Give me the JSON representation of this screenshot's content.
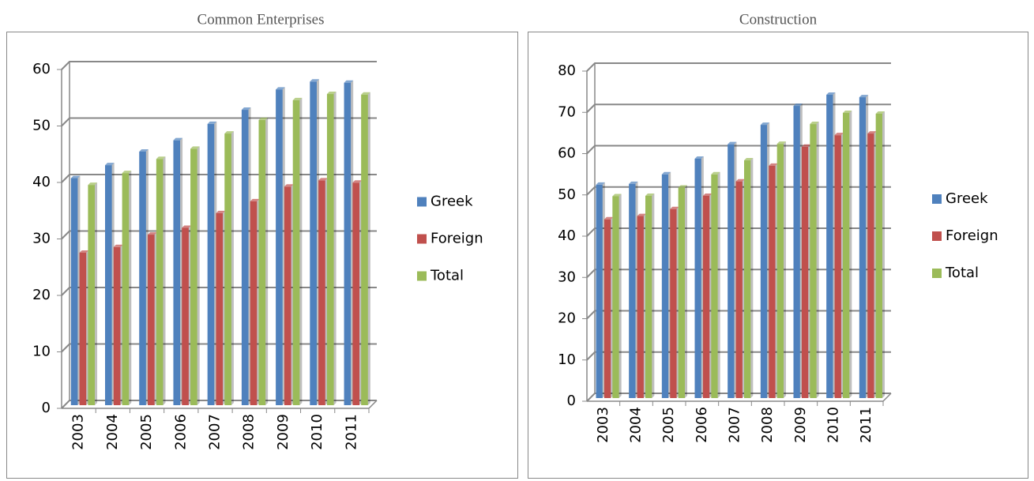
{
  "chart_data": [
    {
      "type": "bar",
      "title": "Common Enterprises",
      "categories": [
        "2003",
        "2004",
        "2005",
        "2006",
        "2007",
        "2008",
        "2009",
        "2010",
        "2011"
      ],
      "series": [
        {
          "name": "Greek",
          "color": "#4f81bd",
          "values": [
            40.2,
            42.5,
            44.9,
            46.9,
            49.8,
            52.3,
            55.9,
            57.3,
            57.1
          ]
        },
        {
          "name": "Foreign",
          "color": "#c0504d",
          "values": [
            27,
            28,
            30.2,
            31.4,
            34,
            36.1,
            38.7,
            39.8,
            39.4
          ]
        },
        {
          "name": "Total",
          "color": "#9bbb59",
          "values": [
            39,
            41.1,
            43.6,
            45.4,
            48.1,
            50.5,
            54,
            55.1,
            55
          ]
        }
      ],
      "ylim": [
        0,
        60
      ],
      "yticks": [
        0,
        10,
        20,
        30,
        40,
        50,
        60
      ],
      "grid": true,
      "legend": "right"
    },
    {
      "type": "bar",
      "title": "Construction",
      "categories": [
        "2003",
        "2004",
        "2005",
        "2006",
        "2007",
        "2008",
        "2009",
        "2010",
        "2011"
      ],
      "series": [
        {
          "name": "Greek",
          "color": "#4f81bd",
          "values": [
            51.7,
            51.9,
            54.2,
            58,
            61.5,
            66.2,
            70.8,
            73.5,
            72.9
          ]
        },
        {
          "name": "Foreign",
          "color": "#c0504d",
          "values": [
            43.3,
            44.1,
            45.8,
            49,
            52.5,
            56.3,
            60.9,
            63.7,
            64.1
          ]
        },
        {
          "name": "Total",
          "color": "#9bbb59",
          "values": [
            48.9,
            49,
            51,
            54.2,
            57.6,
            61.6,
            66.4,
            69.1,
            68.9
          ]
        }
      ],
      "ylim": [
        0,
        80
      ],
      "yticks": [
        0,
        10,
        20,
        30,
        40,
        50,
        60,
        70,
        80
      ],
      "grid": true,
      "legend": "right"
    }
  ]
}
